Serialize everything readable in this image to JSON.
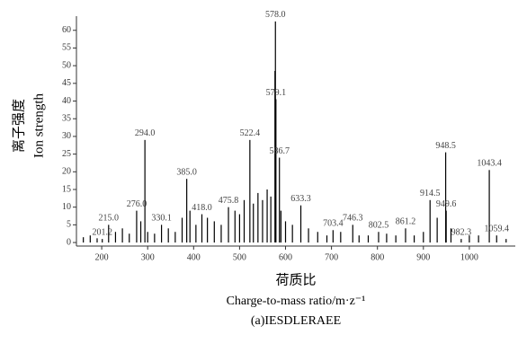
{
  "chart_data": {
    "type": "spectrum",
    "y_label": [
      "离子强度",
      "Ion strength"
    ],
    "x_label": [
      "荷质比",
      "Charge-to-mass ratio/m·z⁻¹"
    ],
    "caption": "(a)IESDLERAEE",
    "color": "#000000",
    "label_color": "#444444",
    "x": [
      160,
      175,
      190,
      201.2,
      215.0,
      230,
      245,
      260,
      276.0,
      285,
      294.0,
      300,
      315,
      330.1,
      345,
      360,
      375,
      385.0,
      392,
      405,
      418.0,
      430,
      445,
      460,
      475.8,
      490,
      500,
      510,
      522.4,
      530,
      540,
      550,
      560,
      568,
      577,
      578.0,
      579.1,
      586.7,
      590,
      600,
      615,
      633.3,
      650,
      670,
      690,
      703.4,
      720,
      746.3,
      760,
      780,
      802.5,
      820,
      840,
      861.2,
      880,
      900,
      914.5,
      930,
      948.5,
      949.6,
      960,
      982.3,
      1000,
      1020,
      1043.4,
      1059.4,
      1080
    ],
    "values": [
      1.5,
      2,
      1.2,
      1,
      5,
      3,
      4,
      2.5,
      9,
      6,
      29,
      3,
      2.5,
      5,
      4,
      3,
      7,
      18,
      9,
      5,
      8,
      7,
      6,
      5,
      10,
      9,
      8,
      12,
      29,
      11,
      14,
      12,
      15,
      13,
      48.5,
      62.5,
      40.5,
      24,
      9,
      6,
      5,
      10.5,
      4,
      3,
      2,
      3.5,
      3,
      5,
      2,
      2,
      3,
      2.5,
      2,
      4,
      2,
      3,
      12,
      7,
      25.5,
      9,
      4,
      1,
      2,
      2,
      20.5,
      2,
      1
    ],
    "peak_labels": [
      null,
      null,
      null,
      "201.2",
      "215.0",
      null,
      null,
      null,
      "276.0",
      null,
      "294.0",
      null,
      null,
      "330.1",
      null,
      null,
      null,
      "385.0",
      null,
      null,
      "418.0",
      null,
      null,
      null,
      "475.8",
      null,
      null,
      null,
      "522.4",
      null,
      null,
      null,
      null,
      null,
      null,
      "578.0",
      "579.1",
      "586.7",
      null,
      null,
      null,
      "633.3",
      null,
      null,
      null,
      "703.4",
      null,
      "746.3",
      null,
      null,
      "802.5",
      null,
      null,
      "861.2",
      null,
      null,
      "914.5",
      null,
      "948.5",
      "949.6",
      null,
      "982.3",
      null,
      null,
      "1043.4",
      "1059.4",
      null
    ],
    "xlim": [
      145,
      1100
    ],
    "ylim": [
      -1,
      64
    ],
    "xticks": [
      200,
      300,
      400,
      500,
      600,
      700,
      800,
      900,
      1000
    ],
    "yticks": [
      0,
      5,
      10,
      15,
      20,
      25,
      30,
      35,
      40,
      45,
      50,
      55,
      60
    ]
  }
}
